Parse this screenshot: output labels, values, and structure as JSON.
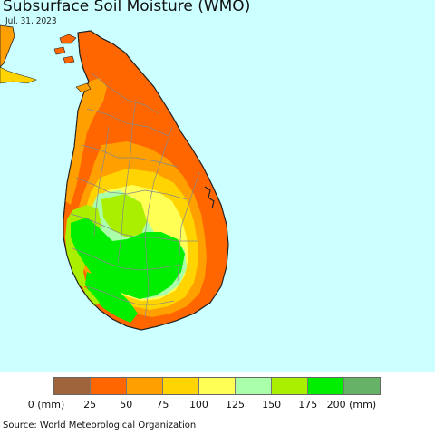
{
  "title": "Subsurface Soil Moisture (WMO)",
  "date": "Jul. 31, 2023",
  "legend": {
    "colors": [
      "#a0643c",
      "#ff6600",
      "#ff9f00",
      "#ffd400",
      "#ffff55",
      "#aaffaa",
      "#aaee00",
      "#00ee00",
      "#66b266"
    ],
    "ticks": [
      "0 (mm)",
      "25",
      "50",
      "75",
      "100",
      "125",
      "150",
      "175",
      "200 (mm)"
    ]
  },
  "source": "Source: World Meteorological Organization",
  "colors": {
    "ocean": "#ccffff",
    "india_land": "#ff9f00",
    "border_lines": "#888888",
    "coast": "#222222"
  }
}
